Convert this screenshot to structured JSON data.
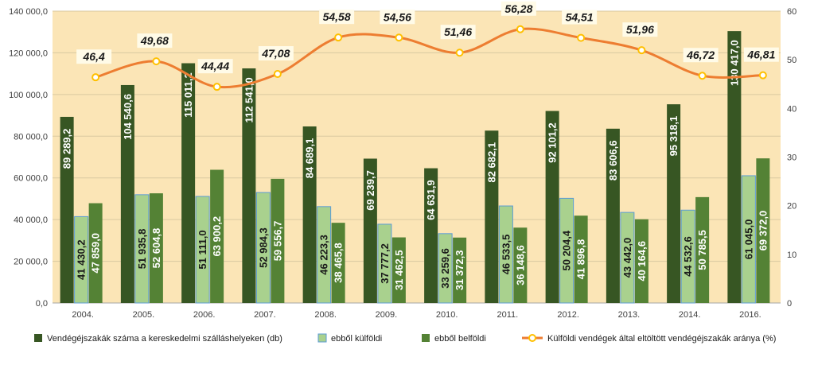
{
  "chart_data": {
    "type": "bar+line",
    "categories": [
      "2004.",
      "2005.",
      "2006.",
      "2007.",
      "2008.",
      "2009.",
      "2010.",
      "2011.",
      "2012.",
      "2013.",
      "2014.",
      "2016."
    ],
    "y_left": {
      "min": 0,
      "max": 140000,
      "step": 20000,
      "tick_labels": [
        "0,0",
        "20 000,0",
        "40 000,0",
        "60 000,0",
        "80 000,0",
        "100 000,0",
        "120 000,0",
        "140 000,0"
      ]
    },
    "y_right": {
      "min": 0,
      "max": 60,
      "step": 10,
      "tick_labels": [
        "0",
        "10",
        "20",
        "30",
        "40",
        "50",
        "60"
      ]
    },
    "series": [
      {
        "name": "Vendégéjszakák száma a kereskedelmi szálláshelyeken (db)",
        "kind": "bar",
        "axis": "left",
        "color": "#375623",
        "label_color": "#ffffff",
        "values": [
          89289.2,
          104540.6,
          115011.2,
          112541.0,
          84689.1,
          69239.7,
          64631.9,
          82682.1,
          92101.2,
          83606.6,
          95318.1,
          130417.0
        ],
        "labels": [
          "89 289,2",
          "104 540,6",
          "115 011,2",
          "112 541,0",
          "84 689,1",
          "69 239,7",
          "64 631,9",
          "82 682,1",
          "92 101,2",
          "83 606,6",
          "95 318,1",
          "130 417,0"
        ]
      },
      {
        "name": "ebből külföldi",
        "kind": "bar",
        "axis": "left",
        "color": "#a9d18e",
        "stroke": "#5b9bd5",
        "label_color": "#1a1a1a",
        "values": [
          41430.2,
          51935.8,
          51111.0,
          52984.3,
          46223.3,
          37777.2,
          33259.6,
          46533.5,
          50204.4,
          43442.0,
          44532.6,
          61045.0
        ],
        "labels": [
          "41 430,2",
          "51 935,8",
          "51 111,0",
          "52 984,3",
          "46 223,3",
          "37 777,2",
          "33 259,6",
          "46 533,5",
          "50 204,4",
          "43 442,0",
          "44 532,6",
          "61 045,0"
        ]
      },
      {
        "name": "ebből belföldi",
        "kind": "bar",
        "axis": "left",
        "color": "#548235",
        "label_color": "#ffffff",
        "values": [
          47859.0,
          52604.8,
          63900.2,
          59556.7,
          38465.8,
          31462.5,
          31372.3,
          36148.6,
          41896.8,
          40164.6,
          50785.5,
          69372.0
        ],
        "labels": [
          "47 859,0",
          "52 604,8",
          "63 900,2",
          "59 556,7",
          "38 465,8",
          "31 462,5",
          "31 372,3",
          "36 148,6",
          "41 896,8",
          "40 164,6",
          "50 785,5",
          "69 372,0"
        ]
      },
      {
        "name": "Külföldi vendégek által eltöltött vendégéjszakák aránya (%)",
        "kind": "line",
        "axis": "right",
        "color": "#ed7d31",
        "marker_color": "#ffc000",
        "values": [
          46.4,
          49.68,
          44.44,
          47.08,
          54.58,
          54.56,
          51.46,
          56.28,
          54.51,
          51.96,
          46.72,
          46.81
        ],
        "labels": [
          "46,4",
          "49,68",
          "44,44",
          "47,08",
          "54,58",
          "54,56",
          "51,46",
          "56,28",
          "54,51",
          "51,96",
          "46,72",
          "46,81"
        ]
      }
    ],
    "plot_background": "#fbe5b6",
    "grid": true,
    "legend": "bottom"
  }
}
